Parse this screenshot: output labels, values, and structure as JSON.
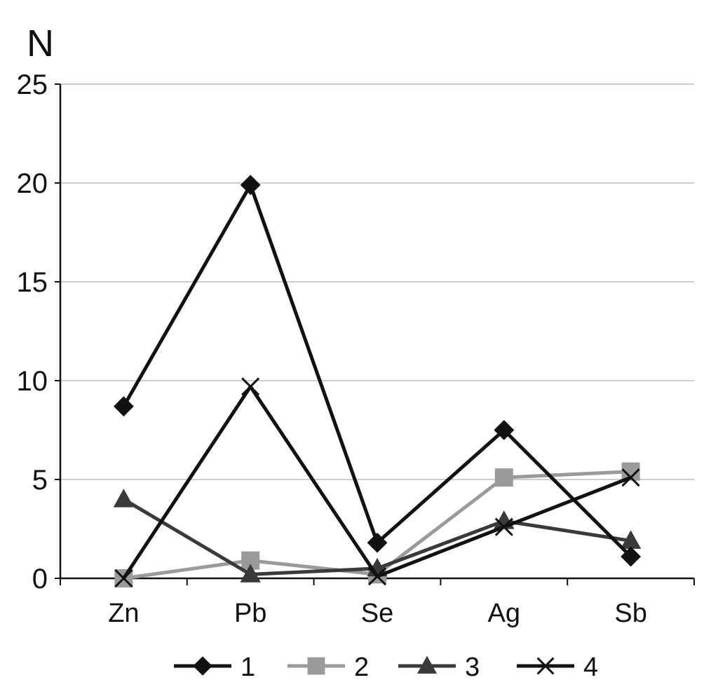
{
  "chart_data": {
    "type": "line",
    "ylabel": "N",
    "categories": [
      "Zn",
      "Pb",
      "Se",
      "Ag",
      "Sb"
    ],
    "ylim": [
      0,
      25
    ],
    "yticks": [
      0,
      5,
      10,
      15,
      20,
      25
    ],
    "grid": true,
    "legend_position": "bottom",
    "series": [
      {
        "name": "1",
        "marker": "diamond",
        "color": "#111111",
        "values": [
          8.7,
          19.9,
          1.8,
          7.5,
          1.1
        ]
      },
      {
        "name": "2",
        "marker": "square",
        "color": "#9a9a9a",
        "values": [
          0.0,
          0.9,
          0.2,
          5.1,
          5.4
        ]
      },
      {
        "name": "3",
        "marker": "triangle",
        "color": "#3a3a3a",
        "values": [
          4.0,
          0.2,
          0.5,
          2.9,
          1.9
        ]
      },
      {
        "name": "4",
        "marker": "x",
        "color": "#111111",
        "values": [
          0.0,
          9.7,
          0.1,
          2.6,
          5.1
        ]
      }
    ]
  }
}
